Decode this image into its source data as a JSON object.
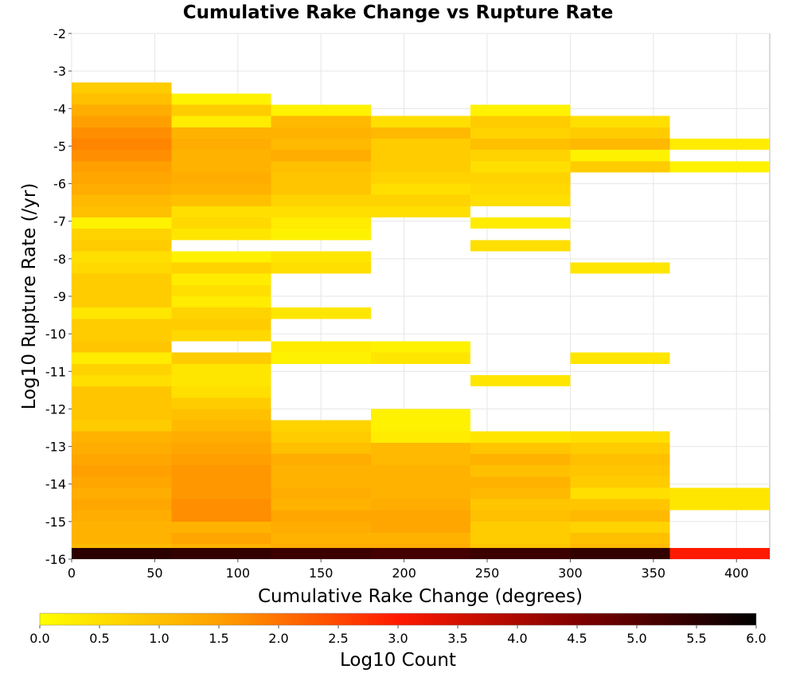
{
  "chart_data": {
    "type": "heatmap",
    "title": "Cumulative Rake Change vs Rupture Rate",
    "xlabel": "Cumulative Rake Change (degrees)",
    "ylabel": "Log10 Rupture Rate (/yr)",
    "xlim": [
      0,
      420
    ],
    "ylim": [
      -16,
      -2
    ],
    "xticks": [
      0,
      50,
      100,
      150,
      200,
      250,
      300,
      350,
      400
    ],
    "yticks": [
      -2,
      -3,
      -4,
      -5,
      -6,
      -7,
      -8,
      -9,
      -10,
      -11,
      -12,
      -13,
      -14,
      -15,
      -16
    ],
    "grid": true,
    "x_bin_width": 60,
    "y_bin_height": 0.3,
    "colorbar": {
      "label": "Log10 Count",
      "range": [
        0,
        6
      ],
      "ticks": [
        "0.0",
        "0.5",
        "1.0",
        "1.5",
        "2.0",
        "2.5",
        "3.0",
        "3.5",
        "4.0",
        "4.5",
        "5.0",
        "5.5",
        "6.0"
      ],
      "colors": [
        "#ffff00",
        "#ffa000",
        "#ff1a00",
        "#800000",
        "#000000"
      ]
    },
    "cells": [
      {
        "x": 0,
        "y": -3.6,
        "v": 0.8
      },
      {
        "x": 0,
        "y": -3.9,
        "v": 1.0
      },
      {
        "x": 0,
        "y": -4.2,
        "v": 1.3
      },
      {
        "x": 0,
        "y": -4.5,
        "v": 1.5
      },
      {
        "x": 0,
        "y": -4.8,
        "v": 1.7
      },
      {
        "x": 0,
        "y": -5.1,
        "v": 1.8
      },
      {
        "x": 0,
        "y": -5.4,
        "v": 1.7
      },
      {
        "x": 0,
        "y": -5.7,
        "v": 1.5
      },
      {
        "x": 0,
        "y": -6.0,
        "v": 1.4
      },
      {
        "x": 0,
        "y": -6.3,
        "v": 1.3
      },
      {
        "x": 0,
        "y": -6.6,
        "v": 1.1
      },
      {
        "x": 0,
        "y": -6.9,
        "v": 1.0
      },
      {
        "x": 0,
        "y": -7.2,
        "v": 0.2
      },
      {
        "x": 0,
        "y": -7.5,
        "v": 0.7
      },
      {
        "x": 0,
        "y": -7.8,
        "v": 0.8
      },
      {
        "x": 0,
        "y": -8.1,
        "v": 0.5
      },
      {
        "x": 0,
        "y": -8.4,
        "v": 0.6
      },
      {
        "x": 0,
        "y": -8.7,
        "v": 0.8
      },
      {
        "x": 0,
        "y": -9.0,
        "v": 0.8
      },
      {
        "x": 0,
        "y": -9.3,
        "v": 0.8
      },
      {
        "x": 0,
        "y": -9.6,
        "v": 0.4
      },
      {
        "x": 0,
        "y": -9.9,
        "v": 0.8
      },
      {
        "x": 0,
        "y": -10.2,
        "v": 0.8
      },
      {
        "x": 0,
        "y": -10.5,
        "v": 0.9
      },
      {
        "x": 0,
        "y": -10.8,
        "v": 0.3
      },
      {
        "x": 0,
        "y": -11.1,
        "v": 0.7
      },
      {
        "x": 0,
        "y": -11.4,
        "v": 0.5
      },
      {
        "x": 0,
        "y": -11.7,
        "v": 0.9
      },
      {
        "x": 0,
        "y": -12.0,
        "v": 0.9
      },
      {
        "x": 0,
        "y": -12.3,
        "v": 0.9
      },
      {
        "x": 0,
        "y": -12.6,
        "v": 0.8
      },
      {
        "x": 0,
        "y": -12.9,
        "v": 1.2
      },
      {
        "x": 0,
        "y": -13.2,
        "v": 1.3
      },
      {
        "x": 0,
        "y": -13.5,
        "v": 1.4
      },
      {
        "x": 0,
        "y": -13.8,
        "v": 1.5
      },
      {
        "x": 0,
        "y": -14.1,
        "v": 1.4
      },
      {
        "x": 0,
        "y": -14.4,
        "v": 1.3
      },
      {
        "x": 0,
        "y": -14.7,
        "v": 1.4
      },
      {
        "x": 0,
        "y": -15.0,
        "v": 1.3
      },
      {
        "x": 0,
        "y": -15.3,
        "v": 1.2
      },
      {
        "x": 0,
        "y": -15.6,
        "v": 1.2
      },
      {
        "x": 0,
        "y": -15.9,
        "v": 1.1
      },
      {
        "x": 0,
        "y": -16.0,
        "v": 5.5
      },
      {
        "x": 60,
        "y": -3.9,
        "v": 0.2
      },
      {
        "x": 60,
        "y": -4.2,
        "v": 0.8
      },
      {
        "x": 60,
        "y": -4.5,
        "v": 0.3
      },
      {
        "x": 60,
        "y": -4.8,
        "v": 1.2
      },
      {
        "x": 60,
        "y": -5.1,
        "v": 1.3
      },
      {
        "x": 60,
        "y": -5.4,
        "v": 1.2
      },
      {
        "x": 60,
        "y": -5.7,
        "v": 1.2
      },
      {
        "x": 60,
        "y": -6.0,
        "v": 1.3
      },
      {
        "x": 60,
        "y": -6.3,
        "v": 1.2
      },
      {
        "x": 60,
        "y": -6.6,
        "v": 1.0
      },
      {
        "x": 60,
        "y": -6.9,
        "v": 0.5
      },
      {
        "x": 60,
        "y": -7.2,
        "v": 0.6
      },
      {
        "x": 60,
        "y": -7.5,
        "v": 0.4
      },
      {
        "x": 60,
        "y": -8.1,
        "v": 0.2
      },
      {
        "x": 60,
        "y": -8.4,
        "v": 0.7
      },
      {
        "x": 60,
        "y": -8.7,
        "v": 0.3
      },
      {
        "x": 60,
        "y": -9.0,
        "v": 0.5
      },
      {
        "x": 60,
        "y": -9.3,
        "v": 0.3
      },
      {
        "x": 60,
        "y": -9.6,
        "v": 0.7
      },
      {
        "x": 60,
        "y": -9.9,
        "v": 0.8
      },
      {
        "x": 60,
        "y": -10.2,
        "v": 0.6
      },
      {
        "x": 60,
        "y": -10.8,
        "v": 0.8
      },
      {
        "x": 60,
        "y": -11.1,
        "v": 0.4
      },
      {
        "x": 60,
        "y": -11.4,
        "v": 0.4
      },
      {
        "x": 60,
        "y": -11.7,
        "v": 0.5
      },
      {
        "x": 60,
        "y": -12.0,
        "v": 0.8
      },
      {
        "x": 60,
        "y": -12.3,
        "v": 1.0
      },
      {
        "x": 60,
        "y": -12.6,
        "v": 1.1
      },
      {
        "x": 60,
        "y": -12.9,
        "v": 1.3
      },
      {
        "x": 60,
        "y": -13.2,
        "v": 1.4
      },
      {
        "x": 60,
        "y": -13.5,
        "v": 1.5
      },
      {
        "x": 60,
        "y": -13.8,
        "v": 1.6
      },
      {
        "x": 60,
        "y": -14.1,
        "v": 1.6
      },
      {
        "x": 60,
        "y": -14.4,
        "v": 1.6
      },
      {
        "x": 60,
        "y": -14.7,
        "v": 1.7
      },
      {
        "x": 60,
        "y": -15.0,
        "v": 1.7
      },
      {
        "x": 60,
        "y": -15.3,
        "v": 1.2
      },
      {
        "x": 60,
        "y": -15.6,
        "v": 1.4
      },
      {
        "x": 60,
        "y": -15.9,
        "v": 1.2
      },
      {
        "x": 60,
        "y": -16.0,
        "v": 5.4
      },
      {
        "x": 120,
        "y": -4.2,
        "v": 0.2
      },
      {
        "x": 120,
        "y": -4.5,
        "v": 1.1
      },
      {
        "x": 120,
        "y": -4.8,
        "v": 1.2
      },
      {
        "x": 120,
        "y": -5.1,
        "v": 1.1
      },
      {
        "x": 120,
        "y": -5.4,
        "v": 1.3
      },
      {
        "x": 120,
        "y": -5.7,
        "v": 1.0
      },
      {
        "x": 120,
        "y": -6.0,
        "v": 0.9
      },
      {
        "x": 120,
        "y": -6.3,
        "v": 0.9
      },
      {
        "x": 120,
        "y": -6.6,
        "v": 0.7
      },
      {
        "x": 120,
        "y": -6.9,
        "v": 0.5
      },
      {
        "x": 120,
        "y": -7.2,
        "v": 0.3
      },
      {
        "x": 120,
        "y": -7.5,
        "v": 0.2
      },
      {
        "x": 120,
        "y": -8.1,
        "v": 0.4
      },
      {
        "x": 120,
        "y": -8.4,
        "v": 0.5
      },
      {
        "x": 120,
        "y": -9.6,
        "v": 0.4
      },
      {
        "x": 120,
        "y": -10.5,
        "v": 0.3
      },
      {
        "x": 120,
        "y": -10.8,
        "v": 0.2
      },
      {
        "x": 120,
        "y": -12.6,
        "v": 0.7
      },
      {
        "x": 120,
        "y": -12.9,
        "v": 0.8
      },
      {
        "x": 120,
        "y": -13.2,
        "v": 1.0
      },
      {
        "x": 120,
        "y": -13.5,
        "v": 1.3
      },
      {
        "x": 120,
        "y": -13.8,
        "v": 1.2
      },
      {
        "x": 120,
        "y": -14.1,
        "v": 1.2
      },
      {
        "x": 120,
        "y": -14.4,
        "v": 1.3
      },
      {
        "x": 120,
        "y": -14.7,
        "v": 1.2
      },
      {
        "x": 120,
        "y": -15.0,
        "v": 1.4
      },
      {
        "x": 120,
        "y": -15.3,
        "v": 1.3
      },
      {
        "x": 120,
        "y": -15.6,
        "v": 1.2
      },
      {
        "x": 120,
        "y": -15.9,
        "v": 1.3
      },
      {
        "x": 120,
        "y": -16.0,
        "v": 5.3
      },
      {
        "x": 180,
        "y": -4.5,
        "v": 0.5
      },
      {
        "x": 180,
        "y": -4.8,
        "v": 1.1
      },
      {
        "x": 180,
        "y": -5.1,
        "v": 0.8
      },
      {
        "x": 180,
        "y": -5.4,
        "v": 0.8
      },
      {
        "x": 180,
        "y": -5.7,
        "v": 0.8
      },
      {
        "x": 180,
        "y": -6.0,
        "v": 0.7
      },
      {
        "x": 180,
        "y": -6.3,
        "v": 0.5
      },
      {
        "x": 180,
        "y": -6.6,
        "v": 0.7
      },
      {
        "x": 180,
        "y": -6.9,
        "v": 0.5
      },
      {
        "x": 180,
        "y": -10.5,
        "v": 0.2
      },
      {
        "x": 180,
        "y": -10.8,
        "v": 0.4
      },
      {
        "x": 180,
        "y": -12.3,
        "v": 0.2
      },
      {
        "x": 180,
        "y": -12.6,
        "v": 0.2
      },
      {
        "x": 180,
        "y": -12.9,
        "v": 0.3
      },
      {
        "x": 180,
        "y": -13.2,
        "v": 1.1
      },
      {
        "x": 180,
        "y": -13.5,
        "v": 1.1
      },
      {
        "x": 180,
        "y": -13.8,
        "v": 1.2
      },
      {
        "x": 180,
        "y": -14.1,
        "v": 1.2
      },
      {
        "x": 180,
        "y": -14.4,
        "v": 1.2
      },
      {
        "x": 180,
        "y": -14.7,
        "v": 1.3
      },
      {
        "x": 180,
        "y": -15.0,
        "v": 1.4
      },
      {
        "x": 180,
        "y": -15.3,
        "v": 1.4
      },
      {
        "x": 180,
        "y": -15.6,
        "v": 1.2
      },
      {
        "x": 180,
        "y": -15.9,
        "v": 1.3
      },
      {
        "x": 180,
        "y": -16.0,
        "v": 5.2
      },
      {
        "x": 240,
        "y": -4.2,
        "v": 0.2
      },
      {
        "x": 240,
        "y": -4.5,
        "v": 0.8
      },
      {
        "x": 240,
        "y": -4.8,
        "v": 0.7
      },
      {
        "x": 240,
        "y": -5.1,
        "v": 1.0
      },
      {
        "x": 240,
        "y": -5.4,
        "v": 0.7
      },
      {
        "x": 240,
        "y": -5.7,
        "v": 0.5
      },
      {
        "x": 240,
        "y": -6.0,
        "v": 0.7
      },
      {
        "x": 240,
        "y": -6.3,
        "v": 0.6
      },
      {
        "x": 240,
        "y": -6.6,
        "v": 0.5
      },
      {
        "x": 240,
        "y": -7.2,
        "v": 0.3
      },
      {
        "x": 240,
        "y": -7.8,
        "v": 0.5
      },
      {
        "x": 240,
        "y": -11.4,
        "v": 0.4
      },
      {
        "x": 240,
        "y": -12.9,
        "v": 0.4
      },
      {
        "x": 240,
        "y": -13.2,
        "v": 0.9
      },
      {
        "x": 240,
        "y": -13.5,
        "v": 1.2
      },
      {
        "x": 240,
        "y": -13.8,
        "v": 1.0
      },
      {
        "x": 240,
        "y": -14.1,
        "v": 1.2
      },
      {
        "x": 240,
        "y": -14.4,
        "v": 1.1
      },
      {
        "x": 240,
        "y": -14.7,
        "v": 0.9
      },
      {
        "x": 240,
        "y": -15.0,
        "v": 1.0
      },
      {
        "x": 240,
        "y": -15.3,
        "v": 0.8
      },
      {
        "x": 240,
        "y": -15.6,
        "v": 0.8
      },
      {
        "x": 240,
        "y": -15.9,
        "v": 0.9
      },
      {
        "x": 240,
        "y": -16.0,
        "v": 5.3
      },
      {
        "x": 300,
        "y": -4.5,
        "v": 0.5
      },
      {
        "x": 300,
        "y": -4.8,
        "v": 0.8
      },
      {
        "x": 300,
        "y": -5.1,
        "v": 1.1
      },
      {
        "x": 300,
        "y": -5.4,
        "v": 0.2
      },
      {
        "x": 300,
        "y": -5.7,
        "v": 0.8
      },
      {
        "x": 300,
        "y": -8.4,
        "v": 0.4
      },
      {
        "x": 300,
        "y": -10.8,
        "v": 0.4
      },
      {
        "x": 300,
        "y": -12.9,
        "v": 0.5
      },
      {
        "x": 300,
        "y": -13.2,
        "v": 0.8
      },
      {
        "x": 300,
        "y": -13.5,
        "v": 1.0
      },
      {
        "x": 300,
        "y": -13.8,
        "v": 0.9
      },
      {
        "x": 300,
        "y": -14.1,
        "v": 0.8
      },
      {
        "x": 300,
        "y": -14.4,
        "v": 0.5
      },
      {
        "x": 300,
        "y": -14.7,
        "v": 0.9
      },
      {
        "x": 300,
        "y": -15.0,
        "v": 1.1
      },
      {
        "x": 300,
        "y": -15.3,
        "v": 0.7
      },
      {
        "x": 300,
        "y": -15.6,
        "v": 1.0
      },
      {
        "x": 300,
        "y": -15.9,
        "v": 1.1
      },
      {
        "x": 300,
        "y": -16.0,
        "v": 5.4
      },
      {
        "x": 360,
        "y": -5.1,
        "v": 0.3
      },
      {
        "x": 360,
        "y": -5.7,
        "v": 0.2
      },
      {
        "x": 360,
        "y": -14.4,
        "v": 0.4
      },
      {
        "x": 360,
        "y": -14.7,
        "v": 0.4
      },
      {
        "x": 360,
        "y": -16.0,
        "v": 3.0
      }
    ]
  }
}
